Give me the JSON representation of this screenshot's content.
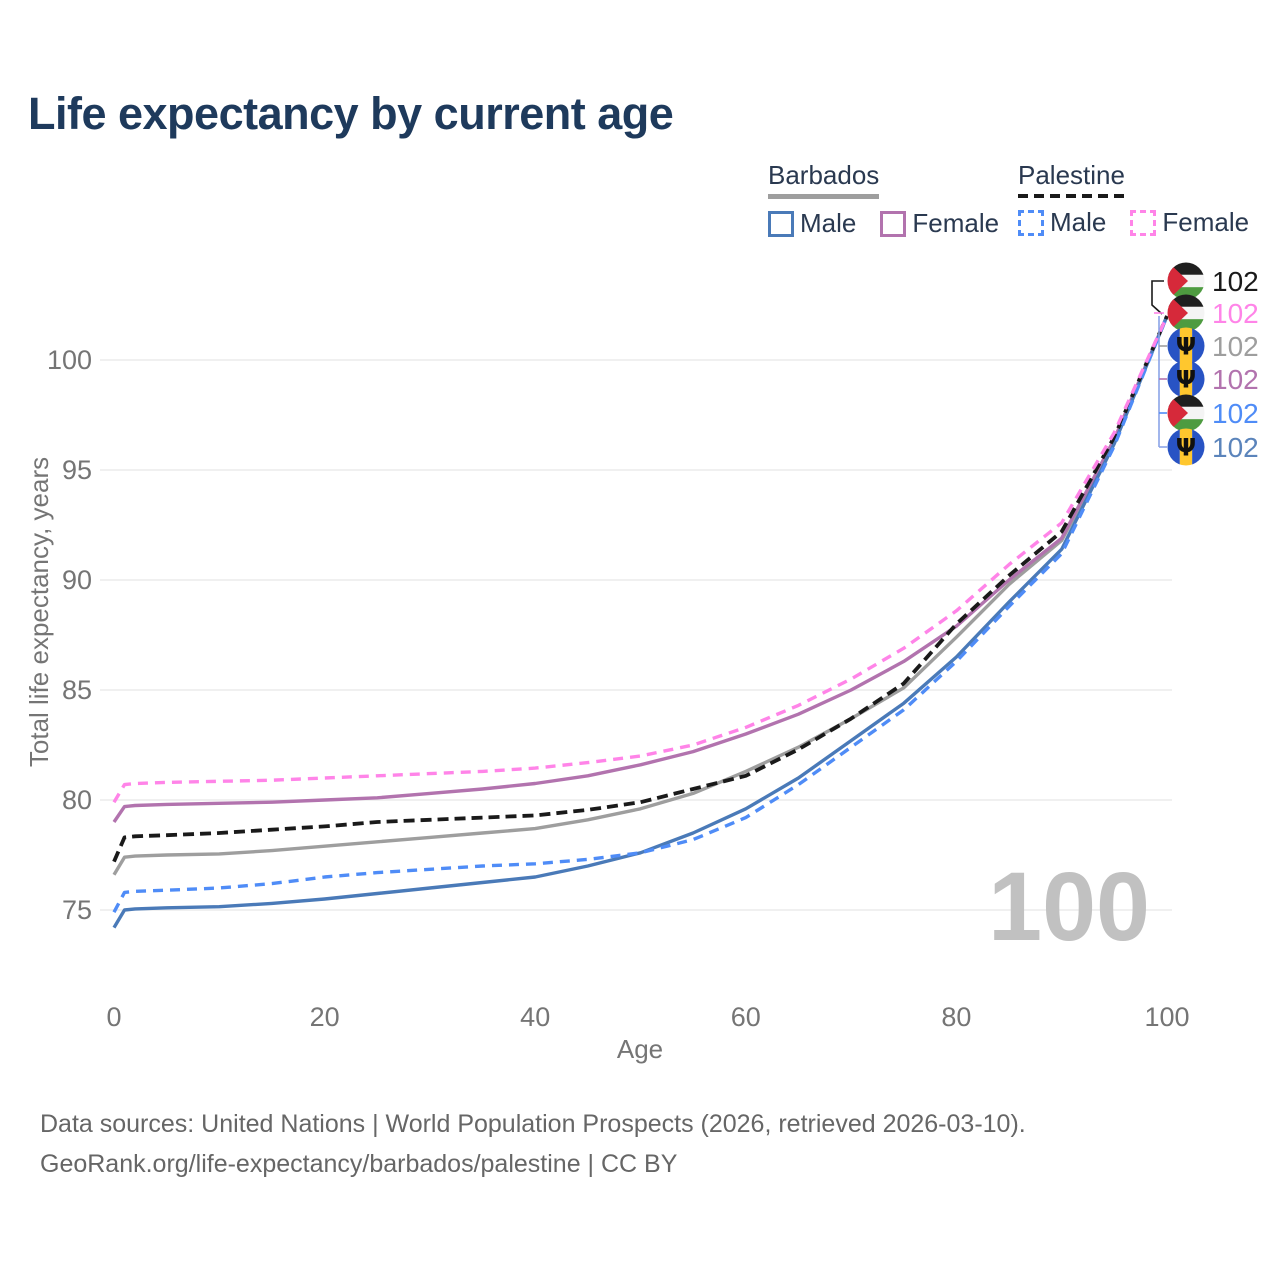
{
  "title": "Life expectancy by current age",
  "legend": {
    "groups": [
      {
        "label": "Barbados",
        "line_style": "solid",
        "line_color": "#9e9e9e",
        "items": [
          {
            "label": "Male",
            "color": "#4a7ab8"
          },
          {
            "label": "Female",
            "color": "#b273ae"
          }
        ]
      },
      {
        "label": "Palestine",
        "line_style": "dashed",
        "line_color": "#1a1a1a",
        "items": [
          {
            "label": "Male",
            "color": "#4f8cf7"
          },
          {
            "label": "Female",
            "color": "#ff84e8"
          }
        ]
      }
    ]
  },
  "chart_data": {
    "type": "line",
    "title": "Life expectancy by current age",
    "xlabel": "Age",
    "ylabel": "Total life expectancy, years",
    "xlim": [
      0,
      100
    ],
    "ylim": [
      73.5,
      103
    ],
    "x_ticks": [
      0,
      20,
      40,
      60,
      80,
      100
    ],
    "y_ticks": [
      75,
      80,
      85,
      90,
      95,
      100
    ],
    "grid": "horizontal-only",
    "legend_position": "top-right",
    "x": [
      0,
      1,
      2,
      5,
      10,
      15,
      20,
      25,
      30,
      35,
      40,
      45,
      50,
      55,
      60,
      65,
      70,
      75,
      80,
      85,
      90,
      95,
      100
    ],
    "series": [
      {
        "id": "barbados-total",
        "name": "Barbados — Both sexes",
        "country": "Barbados",
        "sex": "Both",
        "color": "#9e9e9e",
        "dash": false,
        "width": 3.4,
        "values": [
          76.6,
          77.4,
          77.45,
          77.5,
          77.55,
          77.7,
          77.9,
          78.1,
          78.3,
          78.5,
          78.7,
          79.1,
          79.6,
          80.3,
          81.3,
          82.4,
          83.7,
          85.1,
          87.4,
          89.8,
          91.8,
          96.3,
          102
        ]
      },
      {
        "id": "barbados-female",
        "name": "Barbados — Female",
        "country": "Barbados",
        "sex": "Female",
        "color": "#b273ae",
        "dash": false,
        "width": 3.4,
        "values": [
          79.0,
          79.7,
          79.75,
          79.8,
          79.85,
          79.9,
          80.0,
          80.1,
          80.3,
          80.5,
          80.75,
          81.1,
          81.6,
          82.2,
          83.0,
          83.9,
          85.0,
          86.3,
          87.9,
          90.0,
          91.9,
          96.4,
          102
        ]
      },
      {
        "id": "barbados-male",
        "name": "Barbados — Male",
        "country": "Barbados",
        "sex": "Male",
        "color": "#4a7ab8",
        "dash": false,
        "width": 3.4,
        "values": [
          74.2,
          75.0,
          75.05,
          75.1,
          75.15,
          75.3,
          75.5,
          75.75,
          76.0,
          76.25,
          76.5,
          77.0,
          77.6,
          78.5,
          79.6,
          81.0,
          82.7,
          84.4,
          86.5,
          89.0,
          91.4,
          96.2,
          102
        ]
      },
      {
        "id": "palestine-total",
        "name": "Palestine — Both sexes",
        "country": "Palestine",
        "sex": "Both",
        "color": "#1a1a1a",
        "dash": true,
        "width": 3.8,
        "values": [
          77.2,
          78.3,
          78.35,
          78.4,
          78.5,
          78.65,
          78.8,
          79.0,
          79.1,
          79.2,
          79.3,
          79.55,
          79.9,
          80.5,
          81.1,
          82.3,
          83.7,
          85.3,
          88.0,
          90.2,
          92.2,
          96.5,
          102
        ]
      },
      {
        "id": "palestine-male",
        "name": "Palestine — Male",
        "country": "Palestine",
        "sex": "Male",
        "color": "#4f8cf7",
        "dash": true,
        "width": 3.4,
        "values": [
          74.9,
          75.8,
          75.85,
          75.9,
          76.0,
          76.2,
          76.5,
          76.7,
          76.85,
          77.0,
          77.1,
          77.3,
          77.6,
          78.2,
          79.2,
          80.7,
          82.4,
          84.1,
          86.3,
          88.8,
          91.2,
          96.1,
          102
        ]
      },
      {
        "id": "palestine-female",
        "name": "Palestine — Female",
        "country": "Palestine",
        "sex": "Female",
        "color": "#ff84e8",
        "dash": true,
        "width": 3.4,
        "values": [
          79.9,
          80.7,
          80.75,
          80.8,
          80.85,
          80.9,
          81.0,
          81.1,
          81.2,
          81.3,
          81.45,
          81.7,
          82.0,
          82.5,
          83.3,
          84.3,
          85.5,
          86.9,
          88.6,
          90.7,
          92.6,
          96.7,
          102
        ]
      }
    ]
  },
  "end_labels": [
    {
      "series": "Palestine — Both sexes",
      "flag": "palestine",
      "value": "102",
      "color": "#1a1a1a"
    },
    {
      "series": "Palestine — Female",
      "flag": "palestine",
      "value": "102",
      "color": "#ff84e8"
    },
    {
      "series": "Barbados — Both sexes",
      "flag": "barbados",
      "value": "102",
      "color": "#9e9e9e"
    },
    {
      "series": "Barbados — Female",
      "flag": "barbados",
      "value": "102",
      "color": "#b273ae"
    },
    {
      "series": "Palestine — Male",
      "flag": "palestine",
      "value": "102",
      "color": "#4f8cf7"
    },
    {
      "series": "Barbados — Male",
      "flag": "barbados",
      "value": "102",
      "color": "#5b84bb"
    }
  ],
  "watermark": "100",
  "footer": {
    "line1": "Data sources: United Nations | World Population Prospects (2026, retrieved 2026-03-10).",
    "line2": "GeoRank.org/life-expectancy/barbados/palestine | CC BY"
  }
}
